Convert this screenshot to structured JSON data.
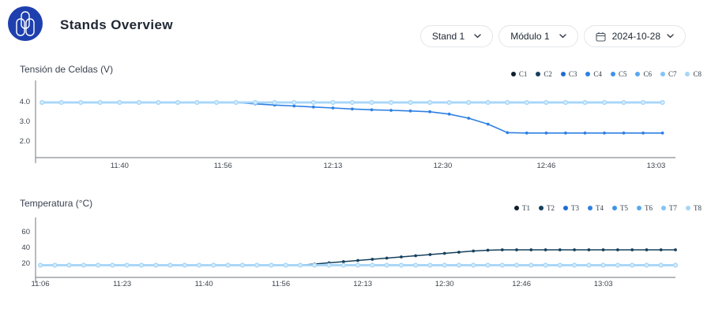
{
  "header": {
    "title": "Stands Overview",
    "logo_color": "#1e3fae",
    "controls": {
      "stand": {
        "value": "Stand 1"
      },
      "module": {
        "value": "Módulo 1"
      },
      "date": {
        "value": "2024-10-28"
      }
    },
    "icons": {
      "calendar": "calendar-outline",
      "chevron": "⌄"
    }
  },
  "colors": {
    "axis": "#878d96",
    "tick_text": "#3d444d",
    "title_text": "#3a4250"
  },
  "chart_data": [
    {
      "type": "line",
      "title": "Tensión de Celdas (V)",
      "xlabel": "",
      "ylabel": "Tensión de Celdas (V)",
      "grid": false,
      "legend_position": "top-right",
      "x_domain": [
        "11:27",
        "13:06"
      ],
      "ylim": [
        1.15,
        4.95
      ],
      "y_ticks": [
        2,
        3,
        4
      ],
      "y_tick_labels": [
        "2.0",
        "3.0",
        "4.0"
      ],
      "x_ticks": [
        "11:40",
        "11:56",
        "12:13",
        "12:30",
        "12:46",
        "13:03"
      ],
      "x": [
        "11:28",
        "11:31",
        "11:34",
        "11:37",
        "11:40",
        "11:43",
        "11:46",
        "11:49",
        "11:52",
        "11:55",
        "11:58",
        "12:01",
        "12:04",
        "12:07",
        "12:10",
        "12:13",
        "12:16",
        "12:19",
        "12:22",
        "12:25",
        "12:28",
        "12:31",
        "12:34",
        "12:37",
        "12:40",
        "12:43",
        "12:46",
        "12:49",
        "12:52",
        "12:55",
        "12:58",
        "13:01",
        "13:04"
      ],
      "series": [
        {
          "name": "C1",
          "color": "#0d1f30",
          "constant": 3.95
        },
        {
          "name": "C2",
          "color": "#16405c",
          "constant": 3.95
        },
        {
          "name": "C3",
          "color": "#1f6bd2",
          "constant": 3.95
        },
        {
          "name": "C4",
          "color": "#2e80e4",
          "values": [
            3.95,
            3.95,
            3.95,
            3.95,
            3.95,
            3.95,
            3.95,
            3.95,
            3.95,
            3.95,
            3.95,
            3.88,
            3.82,
            3.77,
            3.72,
            3.67,
            3.62,
            3.58,
            3.55,
            3.52,
            3.48,
            3.36,
            3.15,
            2.85,
            2.42,
            2.4,
            2.4,
            2.4,
            2.4,
            2.4,
            2.4,
            2.4,
            2.4
          ]
        },
        {
          "name": "C5",
          "color": "#3f93ea",
          "constant": 3.95
        },
        {
          "name": "C6",
          "color": "#58a8f0",
          "constant": 3.95
        },
        {
          "name": "C7",
          "color": "#83c4f6",
          "constant": 3.95
        },
        {
          "name": "C8",
          "color": "#a6d6f8",
          "constant": 3.95
        }
      ]
    },
    {
      "type": "line",
      "title": "Temperatura (°C)",
      "xlabel": "",
      "ylabel": "Temperatura (°C)",
      "grid": false,
      "legend_position": "top-right",
      "x_domain": [
        "11:05",
        "13:18"
      ],
      "ylim": [
        2,
        75
      ],
      "y_ticks": [
        20,
        40,
        60
      ],
      "y_tick_labels": [
        "20",
        "40",
        "60"
      ],
      "x_ticks": [
        "11:06",
        "11:23",
        "11:40",
        "11:56",
        "12:13",
        "12:30",
        "12:46",
        "13:03"
      ],
      "x": [
        "11:06",
        "11:09",
        "11:12",
        "11:15",
        "11:18",
        "11:21",
        "11:24",
        "11:27",
        "11:30",
        "11:33",
        "11:36",
        "11:39",
        "11:42",
        "11:45",
        "11:48",
        "11:51",
        "11:54",
        "11:57",
        "12:00",
        "12:03",
        "12:06",
        "12:09",
        "12:12",
        "12:15",
        "12:18",
        "12:21",
        "12:24",
        "12:27",
        "12:30",
        "12:33",
        "12:36",
        "12:39",
        "12:42",
        "12:45",
        "12:48",
        "12:51",
        "12:54",
        "12:57",
        "13:00",
        "13:03",
        "13:06",
        "13:09",
        "13:12",
        "13:15",
        "13:18"
      ],
      "series": [
        {
          "name": "T1",
          "color": "#0d1f30",
          "constant": 17.5
        },
        {
          "name": "T2",
          "color": "#16405c",
          "values": [
            17.5,
            17.5,
            17.5,
            17.5,
            17.5,
            17.5,
            17.5,
            17.5,
            17.5,
            17.5,
            17.5,
            17.5,
            17.5,
            17.5,
            17.5,
            17.5,
            17.5,
            17.5,
            17.5,
            19,
            20.5,
            22,
            23.5,
            25,
            26.5,
            28,
            29.5,
            31,
            32.5,
            34,
            35.5,
            36.5,
            37,
            37,
            37,
            37,
            37,
            37,
            37,
            37,
            37,
            37,
            37,
            37,
            37
          ]
        },
        {
          "name": "T3",
          "color": "#1f6bd2",
          "constant": 17.5
        },
        {
          "name": "T4",
          "color": "#2e80e4",
          "constant": 17.5
        },
        {
          "name": "T5",
          "color": "#3f93ea",
          "constant": 17.5
        },
        {
          "name": "T6",
          "color": "#58a8f0",
          "constant": 17.5
        },
        {
          "name": "T7",
          "color": "#83c4f6",
          "constant": 17.5
        },
        {
          "name": "T8",
          "color": "#a6d6f8",
          "constant": 17.5
        }
      ]
    }
  ]
}
